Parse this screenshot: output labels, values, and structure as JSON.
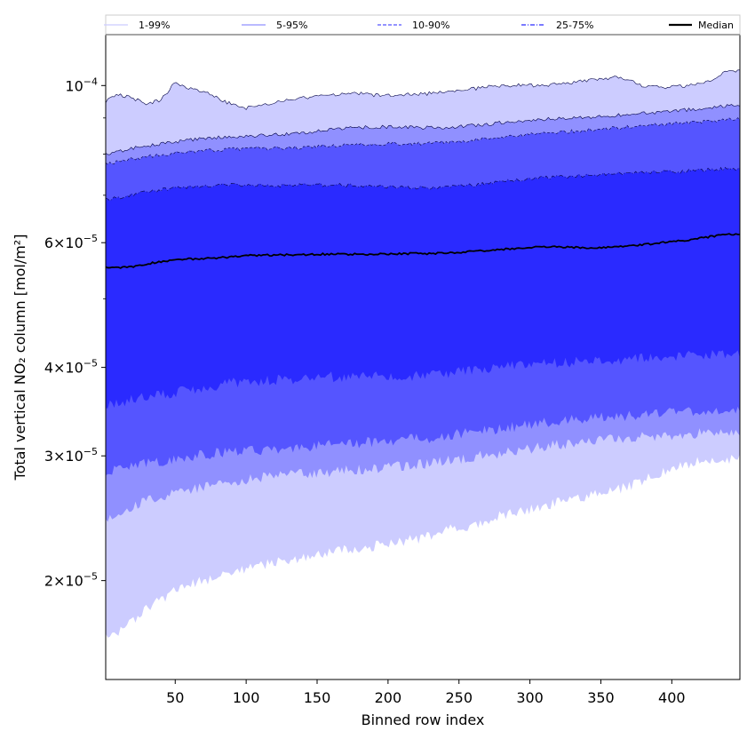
{
  "chart_data": {
    "type": "area",
    "xlabel": "Binned row index",
    "ylabel": "Total vertical NO₂ column [mol/m²]",
    "xlim": [
      1,
      448
    ],
    "ylim": [
      1.45e-05,
      0.000118
    ],
    "yscale": "log",
    "grid": false,
    "legend_position": "top",
    "x_ticks": [
      {
        "value": 50,
        "label": "50"
      },
      {
        "value": 100,
        "label": "100"
      },
      {
        "value": 150,
        "label": "150"
      },
      {
        "value": 200,
        "label": "200"
      },
      {
        "value": 250,
        "label": "250"
      },
      {
        "value": 300,
        "label": "300"
      },
      {
        "value": 350,
        "label": "350"
      },
      {
        "value": 400,
        "label": "400"
      }
    ],
    "y_ticks": [
      {
        "value": 0.0001,
        "mantissa": "",
        "base": "10",
        "exp": "−4"
      },
      {
        "value": 6e-05,
        "mantissa": "6",
        "base": "×10",
        "exp": "−5"
      },
      {
        "value": 4e-05,
        "mantissa": "4",
        "base": "×10",
        "exp": "−5"
      },
      {
        "value": 3e-05,
        "mantissa": "3",
        "base": "×10",
        "exp": "−5"
      },
      {
        "value": 2e-05,
        "mantissa": "2",
        "base": "×10",
        "exp": "−5"
      }
    ],
    "y_minor_ticks": [
      5e-05,
      9e-05,
      8e-05,
      7e-05
    ],
    "x": [
      1,
      10,
      20,
      30,
      40,
      50,
      60,
      70,
      80,
      90,
      100,
      110,
      120,
      130,
      140,
      150,
      160,
      170,
      180,
      190,
      200,
      210,
      220,
      230,
      240,
      250,
      260,
      270,
      280,
      290,
      300,
      310,
      320,
      330,
      340,
      350,
      360,
      370,
      380,
      390,
      400,
      410,
      420,
      430,
      440,
      448
    ],
    "series": [
      {
        "name": "1-99%",
        "color": "#ccccff",
        "style": "solid",
        "lower": [
          1.67e-05,
          1.7e-05,
          1.76e-05,
          1.82e-05,
          1.88e-05,
          1.93e-05,
          1.97e-05,
          2e-05,
          2.03e-05,
          2.06e-05,
          2.08e-05,
          2.1e-05,
          2.12e-05,
          2.14e-05,
          2.16e-05,
          2.17e-05,
          2.19e-05,
          2.21e-05,
          2.22e-05,
          2.24e-05,
          2.25e-05,
          2.27e-05,
          2.29e-05,
          2.32e-05,
          2.35e-05,
          2.38e-05,
          2.4e-05,
          2.43e-05,
          2.47e-05,
          2.5e-05,
          2.52e-05,
          2.55e-05,
          2.58e-05,
          2.61e-05,
          2.63e-05,
          2.65e-05,
          2.68e-05,
          2.72e-05,
          2.77e-05,
          2.82e-05,
          2.87e-05,
          2.91e-05,
          2.96e-05,
          2.93e-05,
          2.96e-05,
          2.98e-05
        ],
        "upper": [
          9.5e-05,
          9.7e-05,
          9.6e-05,
          9.4e-05,
          9.55e-05,
          0.000101,
          9.9e-05,
          9.8e-05,
          9.6e-05,
          9.4e-05,
          9.3e-05,
          9.35e-05,
          9.45e-05,
          9.55e-05,
          9.6e-05,
          9.65e-05,
          9.68e-05,
          9.72e-05,
          9.75e-05,
          9.7e-05,
          9.68e-05,
          9.7e-05,
          9.72e-05,
          9.75e-05,
          9.8e-05,
          9.85e-05,
          9.9e-05,
          9.95e-05,
          0.0001,
          0.0001,
          0.0001,
          0.0001,
          0.0001005,
          0.000101,
          0.0001015,
          0.000102,
          0.000103,
          0.0001015,
          0.0001,
          9.95e-05,
          9.95e-05,
          0.0001,
          0.000101,
          0.000102,
          0.000105,
          0.000105
        ]
      },
      {
        "name": "5-95%",
        "color": "#9090ff",
        "style": "solid",
        "lower": [
          2.45e-05,
          2.5e-05,
          2.55e-05,
          2.6e-05,
          2.63e-05,
          2.66e-05,
          2.69e-05,
          2.72e-05,
          2.74e-05,
          2.76e-05,
          2.78e-05,
          2.8e-05,
          2.81e-05,
          2.82e-05,
          2.83e-05,
          2.84e-05,
          2.85e-05,
          2.86e-05,
          2.87e-05,
          2.88e-05,
          2.89e-05,
          2.9e-05,
          2.91e-05,
          2.93e-05,
          2.95e-05,
          2.97e-05,
          2.99e-05,
          3.01e-05,
          3.03e-05,
          3.05e-05,
          3.07e-05,
          3.09e-05,
          3.11e-05,
          3.13e-05,
          3.15e-05,
          3.16e-05,
          3.17e-05,
          3.18e-05,
          3.19e-05,
          3.2e-05,
          3.21e-05,
          3.22e-05,
          3.23e-05,
          3.24e-05,
          3.25e-05,
          3.25e-05
        ],
        "upper": [
          8e-05,
          8.08e-05,
          8.15e-05,
          8.22e-05,
          8.28e-05,
          8.33e-05,
          8.38e-05,
          8.42e-05,
          8.44e-05,
          8.46e-05,
          8.48e-05,
          8.5e-05,
          8.52e-05,
          8.55e-05,
          8.58e-05,
          8.62e-05,
          8.66e-05,
          8.7e-05,
          8.72e-05,
          8.74e-05,
          8.74e-05,
          8.73e-05,
          8.72e-05,
          8.72e-05,
          8.73e-05,
          8.75e-05,
          8.78e-05,
          8.82e-05,
          8.86e-05,
          8.9e-05,
          8.94e-05,
          8.96e-05,
          8.98e-05,
          9e-05,
          9.02e-05,
          9.04e-05,
          9.07e-05,
          9.1e-05,
          9.13e-05,
          9.16e-05,
          9.2e-05,
          9.24e-05,
          9.28e-05,
          9.32e-05,
          9.36e-05,
          9.38e-05
        ]
      },
      {
        "name": "10-90%",
        "color": "#5555ff",
        "style": "dashed",
        "lower": [
          2.85e-05,
          2.87e-05,
          2.9e-05,
          2.93e-05,
          2.95e-05,
          2.97e-05,
          2.99e-05,
          3.01e-05,
          3.03e-05,
          3.04e-05,
          3.05e-05,
          3.06e-05,
          3.07e-05,
          3.08e-05,
          3.09e-05,
          3.1e-05,
          3.11e-05,
          3.12e-05,
          3.13e-05,
          3.14e-05,
          3.15e-05,
          3.16e-05,
          3.17e-05,
          3.18e-05,
          3.2e-05,
          3.22e-05,
          3.24e-05,
          3.26e-05,
          3.28e-05,
          3.3e-05,
          3.32e-05,
          3.34e-05,
          3.36e-05,
          3.38e-05,
          3.39e-05,
          3.4e-05,
          3.41e-05,
          3.42e-05,
          3.43e-05,
          3.44e-05,
          3.45e-05,
          3.46e-05,
          3.47e-05,
          3.48e-05,
          3.49e-05,
          3.5e-05
        ],
        "upper": [
          7.75e-05,
          7.8e-05,
          7.87e-05,
          7.93e-05,
          7.98e-05,
          8.02e-05,
          8.06e-05,
          8.09e-05,
          8.11e-05,
          8.13e-05,
          8.14e-05,
          8.15e-05,
          8.16e-05,
          8.17e-05,
          8.18e-05,
          8.2e-05,
          8.22e-05,
          8.24e-05,
          8.26e-05,
          8.27e-05,
          8.28e-05,
          8.28e-05,
          8.28e-05,
          8.29e-05,
          8.31e-05,
          8.34e-05,
          8.37e-05,
          8.41e-05,
          8.45e-05,
          8.49e-05,
          8.53e-05,
          8.56e-05,
          8.59e-05,
          8.62e-05,
          8.65e-05,
          8.68e-05,
          8.71e-05,
          8.74e-05,
          8.77e-05,
          8.8e-05,
          8.83e-05,
          8.86e-05,
          8.89e-05,
          8.92e-05,
          8.95e-05,
          8.97e-05
        ]
      },
      {
        "name": "25-75%",
        "color": "#2a2aff",
        "style": "dashdot",
        "lower": [
          3.55e-05,
          3.57e-05,
          3.6e-05,
          3.63e-05,
          3.66e-05,
          3.69e-05,
          3.72e-05,
          3.75e-05,
          3.78e-05,
          3.8e-05,
          3.82e-05,
          3.83e-05,
          3.84e-05,
          3.85e-05,
          3.86e-05,
          3.87e-05,
          3.88e-05,
          3.88e-05,
          3.88e-05,
          3.88e-05,
          3.88e-05,
          3.88e-05,
          3.89e-05,
          3.9e-05,
          3.92e-05,
          3.94e-05,
          3.96e-05,
          3.98e-05,
          4e-05,
          4.02e-05,
          4.04e-05,
          4.05e-05,
          4.06e-05,
          4.07e-05,
          4.08e-05,
          4.09e-05,
          4.1e-05,
          4.11e-05,
          4.12e-05,
          4.13e-05,
          4.14e-05,
          4.15e-05,
          4.16e-05,
          4.17e-05,
          4.18e-05,
          4.19e-05
        ],
        "upper": [
          6.9e-05,
          6.95e-05,
          7.02e-05,
          7.08e-05,
          7.13e-05,
          7.17e-05,
          7.2e-05,
          7.22e-05,
          7.23e-05,
          7.24e-05,
          7.24e-05,
          7.23e-05,
          7.22e-05,
          7.22e-05,
          7.23e-05,
          7.24e-05,
          7.24e-05,
          7.23e-05,
          7.22e-05,
          7.21e-05,
          7.2e-05,
          7.19e-05,
          7.18e-05,
          7.17e-05,
          7.18e-05,
          7.2e-05,
          7.23e-05,
          7.27e-05,
          7.31e-05,
          7.35e-05,
          7.38e-05,
          7.41e-05,
          7.43e-05,
          7.45e-05,
          7.47e-05,
          7.49e-05,
          7.51e-05,
          7.52e-05,
          7.53e-05,
          7.54e-05,
          7.55e-05,
          7.57e-05,
          7.59e-05,
          7.61e-05,
          7.63e-05,
          7.64e-05
        ]
      },
      {
        "name": "Median",
        "color": "#000000",
        "style": "solid",
        "values": [
          5.55e-05,
          5.53e-05,
          5.55e-05,
          5.6e-05,
          5.64e-05,
          5.67e-05,
          5.69e-05,
          5.7e-05,
          5.71e-05,
          5.73e-05,
          5.75e-05,
          5.76e-05,
          5.76e-05,
          5.77e-05,
          5.77e-05,
          5.78e-05,
          5.78e-05,
          5.78e-05,
          5.78e-05,
          5.78e-05,
          5.78e-05,
          5.79e-05,
          5.79e-05,
          5.79e-05,
          5.8e-05,
          5.81e-05,
          5.83e-05,
          5.85e-05,
          5.87e-05,
          5.89e-05,
          5.91e-05,
          5.92e-05,
          5.92e-05,
          5.91e-05,
          5.9e-05,
          5.9e-05,
          5.91e-05,
          5.93e-05,
          5.96e-05,
          5.99e-05,
          6.02e-05,
          6.05e-05,
          6.09e-05,
          6.13e-05,
          6.16e-05,
          6.17e-05
        ]
      }
    ]
  }
}
